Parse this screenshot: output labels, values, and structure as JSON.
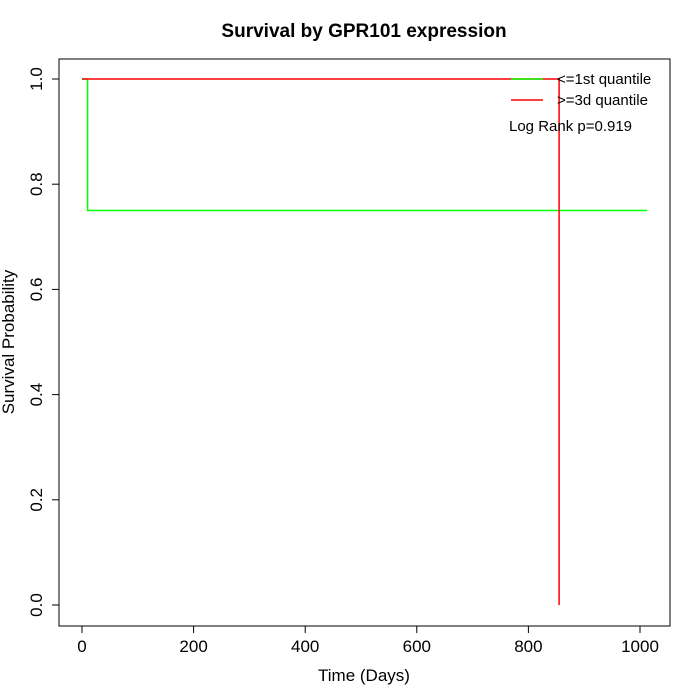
{
  "chart_data": {
    "type": "line",
    "title": "Survival by GPR101 expression",
    "xlabel": "Time (Days)",
    "ylabel": "Survival Probability",
    "xlim": [
      0,
      1000
    ],
    "ylim": [
      0,
      1.0
    ],
    "x_ticks": [
      "0",
      "200",
      "400",
      "600",
      "800",
      "1000"
    ],
    "y_ticks": [
      "0.0",
      "0.2",
      "0.4",
      "0.6",
      "0.8",
      "1.0"
    ],
    "grid": false,
    "legend_position": "top-right",
    "series": [
      {
        "name": "<=1st quantile",
        "color": "#00ff00",
        "step": true,
        "points": [
          [
            0,
            1.0
          ],
          [
            10,
            1.0
          ],
          [
            10,
            0.75
          ],
          [
            1013,
            0.75
          ]
        ]
      },
      {
        "name": ">=3d quantile",
        "color": "#ff0000",
        "step": true,
        "points": [
          [
            0,
            1.0
          ],
          [
            855,
            1.0
          ],
          [
            855,
            0.0
          ]
        ]
      }
    ],
    "annotations": [
      "Log Rank p=0.919"
    ]
  }
}
